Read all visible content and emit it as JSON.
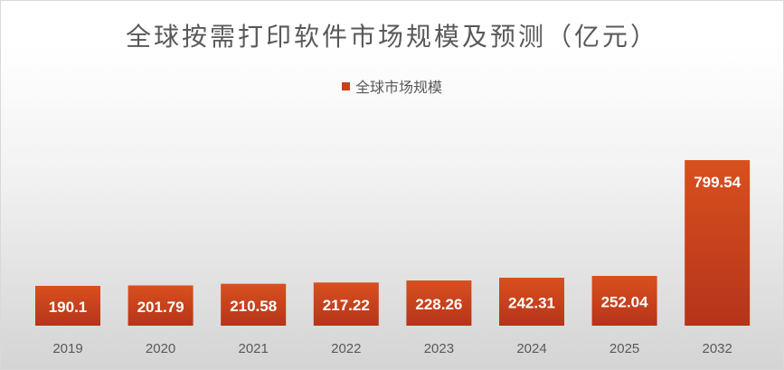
{
  "chart_data": {
    "type": "bar",
    "title": "全球按需打印软件市场规模及预测（亿元）",
    "categories": [
      "2019",
      "2020",
      "2021",
      "2022",
      "2023",
      "2024",
      "2025",
      "2032"
    ],
    "series": [
      {
        "name": "全球市场规模",
        "values": [
          190.1,
          201.79,
          210.58,
          217.22,
          228.26,
          242.31,
          252.04,
          799.54
        ],
        "labels": [
          "190.1",
          "201.79",
          "210.58",
          "217.22",
          "228.26",
          "242.31",
          "252.04",
          "799.54"
        ],
        "color": "#C8401C"
      }
    ],
    "grid": false,
    "legend": "top-center",
    "ylim": [
      0,
      1000
    ],
    "colors": {
      "bar_top": "#D9501F",
      "bar_bottom": "#B5341A",
      "data_label": "#ffffff",
      "axis_label": "#595959",
      "title": "#595959"
    }
  }
}
